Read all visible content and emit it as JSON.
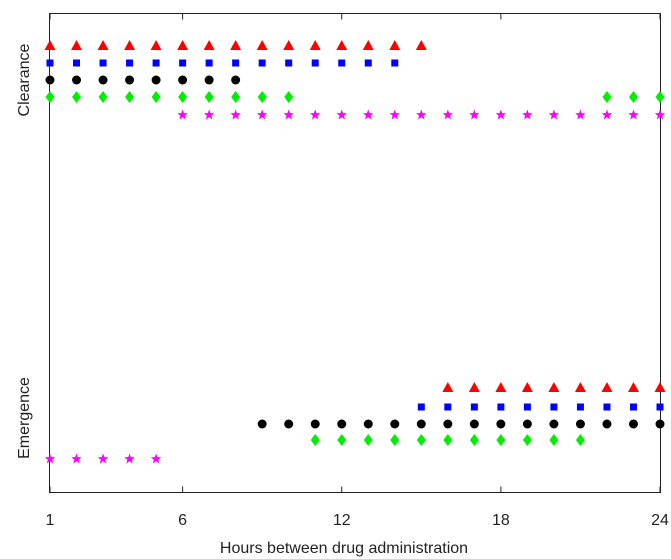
{
  "chart_data": {
    "type": "scatter",
    "xlabel": "Hours between drug administration",
    "x_ticks": [
      1,
      6,
      12,
      18,
      24
    ],
    "x_tick_labels": [
      "1",
      "6",
      "12",
      "18",
      "24"
    ],
    "xlim": [
      1,
      24
    ],
    "y_categories": [
      "Emergence",
      "Clearance"
    ],
    "grid": false,
    "legend": "none",
    "series": [
      {
        "color": "#ff0000",
        "marker": "triangle",
        "points": [
          {
            "x": 1,
            "y": "Clearance"
          },
          {
            "x": 2,
            "y": "Clearance"
          },
          {
            "x": 3,
            "y": "Clearance"
          },
          {
            "x": 4,
            "y": "Clearance"
          },
          {
            "x": 5,
            "y": "Clearance"
          },
          {
            "x": 6,
            "y": "Clearance"
          },
          {
            "x": 7,
            "y": "Clearance"
          },
          {
            "x": 8,
            "y": "Clearance"
          },
          {
            "x": 9,
            "y": "Clearance"
          },
          {
            "x": 10,
            "y": "Clearance"
          },
          {
            "x": 11,
            "y": "Clearance"
          },
          {
            "x": 12,
            "y": "Clearance"
          },
          {
            "x": 13,
            "y": "Clearance"
          },
          {
            "x": 14,
            "y": "Clearance"
          },
          {
            "x": 15,
            "y": "Clearance"
          },
          {
            "x": 16,
            "y": "Emergence"
          },
          {
            "x": 17,
            "y": "Emergence"
          },
          {
            "x": 18,
            "y": "Emergence"
          },
          {
            "x": 19,
            "y": "Emergence"
          },
          {
            "x": 20,
            "y": "Emergence"
          },
          {
            "x": 21,
            "y": "Emergence"
          },
          {
            "x": 22,
            "y": "Emergence"
          },
          {
            "x": 23,
            "y": "Emergence"
          },
          {
            "x": 24,
            "y": "Emergence"
          }
        ]
      },
      {
        "color": "#0000ff",
        "marker": "square",
        "points": [
          {
            "x": 1,
            "y": "Clearance"
          },
          {
            "x": 2,
            "y": "Clearance"
          },
          {
            "x": 3,
            "y": "Clearance"
          },
          {
            "x": 4,
            "y": "Clearance"
          },
          {
            "x": 5,
            "y": "Clearance"
          },
          {
            "x": 6,
            "y": "Clearance"
          },
          {
            "x": 7,
            "y": "Clearance"
          },
          {
            "x": 8,
            "y": "Clearance"
          },
          {
            "x": 9,
            "y": "Clearance"
          },
          {
            "x": 10,
            "y": "Clearance"
          },
          {
            "x": 11,
            "y": "Clearance"
          },
          {
            "x": 12,
            "y": "Clearance"
          },
          {
            "x": 13,
            "y": "Clearance"
          },
          {
            "x": 14,
            "y": "Clearance"
          },
          {
            "x": 15,
            "y": "Emergence"
          },
          {
            "x": 16,
            "y": "Emergence"
          },
          {
            "x": 17,
            "y": "Emergence"
          },
          {
            "x": 18,
            "y": "Emergence"
          },
          {
            "x": 19,
            "y": "Emergence"
          },
          {
            "x": 20,
            "y": "Emergence"
          },
          {
            "x": 21,
            "y": "Emergence"
          },
          {
            "x": 22,
            "y": "Emergence"
          },
          {
            "x": 23,
            "y": "Emergence"
          },
          {
            "x": 24,
            "y": "Emergence"
          }
        ]
      },
      {
        "color": "#000000",
        "marker": "circle",
        "points": [
          {
            "x": 1,
            "y": "Clearance"
          },
          {
            "x": 2,
            "y": "Clearance"
          },
          {
            "x": 3,
            "y": "Clearance"
          },
          {
            "x": 4,
            "y": "Clearance"
          },
          {
            "x": 5,
            "y": "Clearance"
          },
          {
            "x": 6,
            "y": "Clearance"
          },
          {
            "x": 7,
            "y": "Clearance"
          },
          {
            "x": 8,
            "y": "Clearance"
          },
          {
            "x": 9,
            "y": "Emergence"
          },
          {
            "x": 10,
            "y": "Emergence"
          },
          {
            "x": 11,
            "y": "Emergence"
          },
          {
            "x": 12,
            "y": "Emergence"
          },
          {
            "x": 13,
            "y": "Emergence"
          },
          {
            "x": 14,
            "y": "Emergence"
          },
          {
            "x": 15,
            "y": "Emergence"
          },
          {
            "x": 16,
            "y": "Emergence"
          },
          {
            "x": 17,
            "y": "Emergence"
          },
          {
            "x": 18,
            "y": "Emergence"
          },
          {
            "x": 19,
            "y": "Emergence"
          },
          {
            "x": 20,
            "y": "Emergence"
          },
          {
            "x": 21,
            "y": "Emergence"
          },
          {
            "x": 22,
            "y": "Emergence"
          },
          {
            "x": 23,
            "y": "Emergence"
          },
          {
            "x": 24,
            "y": "Emergence"
          }
        ]
      },
      {
        "color": "#00ee00",
        "marker": "diamond",
        "points": [
          {
            "x": 1,
            "y": "Clearance"
          },
          {
            "x": 2,
            "y": "Clearance"
          },
          {
            "x": 3,
            "y": "Clearance"
          },
          {
            "x": 4,
            "y": "Clearance"
          },
          {
            "x": 5,
            "y": "Clearance"
          },
          {
            "x": 6,
            "y": "Clearance"
          },
          {
            "x": 7,
            "y": "Clearance"
          },
          {
            "x": 8,
            "y": "Clearance"
          },
          {
            "x": 9,
            "y": "Clearance"
          },
          {
            "x": 10,
            "y": "Clearance"
          },
          {
            "x": 11,
            "y": "Emergence"
          },
          {
            "x": 12,
            "y": "Emergence"
          },
          {
            "x": 13,
            "y": "Emergence"
          },
          {
            "x": 14,
            "y": "Emergence"
          },
          {
            "x": 15,
            "y": "Emergence"
          },
          {
            "x": 16,
            "y": "Emergence"
          },
          {
            "x": 17,
            "y": "Emergence"
          },
          {
            "x": 18,
            "y": "Emergence"
          },
          {
            "x": 19,
            "y": "Emergence"
          },
          {
            "x": 20,
            "y": "Emergence"
          },
          {
            "x": 21,
            "y": "Emergence"
          },
          {
            "x": 22,
            "y": "Clearance"
          },
          {
            "x": 23,
            "y": "Clearance"
          },
          {
            "x": 24,
            "y": "Clearance"
          }
        ]
      },
      {
        "color": "#ff00ff",
        "marker": "star",
        "points": [
          {
            "x": 1,
            "y": "Emergence"
          },
          {
            "x": 2,
            "y": "Emergence"
          },
          {
            "x": 3,
            "y": "Emergence"
          },
          {
            "x": 4,
            "y": "Emergence"
          },
          {
            "x": 5,
            "y": "Emergence"
          },
          {
            "x": 6,
            "y": "Clearance"
          },
          {
            "x": 7,
            "y": "Clearance"
          },
          {
            "x": 8,
            "y": "Clearance"
          },
          {
            "x": 9,
            "y": "Clearance"
          },
          {
            "x": 10,
            "y": "Clearance"
          },
          {
            "x": 11,
            "y": "Clearance"
          },
          {
            "x": 12,
            "y": "Clearance"
          },
          {
            "x": 13,
            "y": "Clearance"
          },
          {
            "x": 14,
            "y": "Clearance"
          },
          {
            "x": 15,
            "y": "Clearance"
          },
          {
            "x": 16,
            "y": "Clearance"
          },
          {
            "x": 17,
            "y": "Clearance"
          },
          {
            "x": 18,
            "y": "Clearance"
          },
          {
            "x": 19,
            "y": "Clearance"
          },
          {
            "x": 20,
            "y": "Clearance"
          },
          {
            "x": 21,
            "y": "Clearance"
          },
          {
            "x": 22,
            "y": "Clearance"
          },
          {
            "x": 23,
            "y": "Clearance"
          },
          {
            "x": 24,
            "y": "Clearance"
          }
        ]
      }
    ]
  }
}
